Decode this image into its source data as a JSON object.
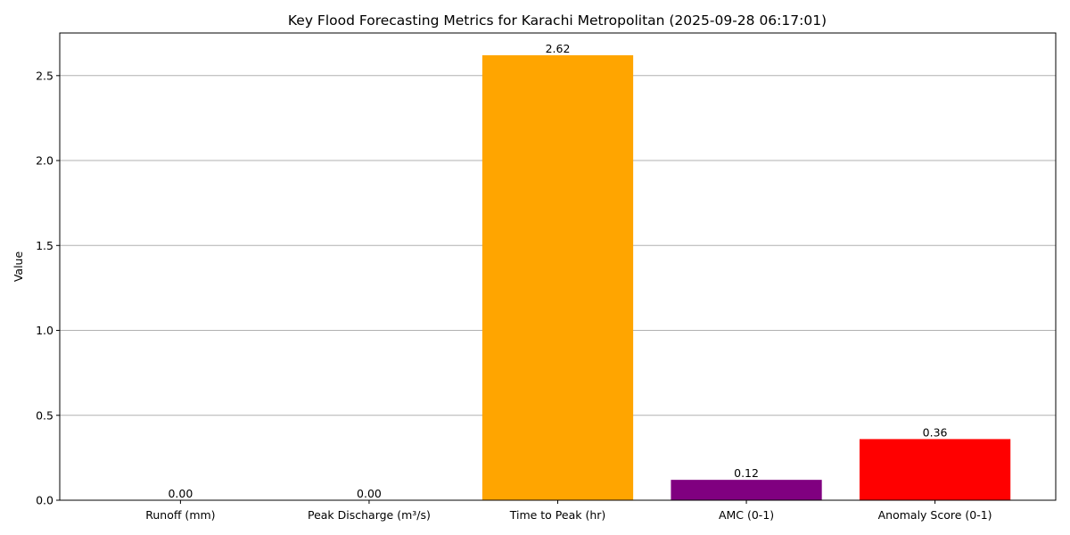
{
  "chart_data": {
    "type": "bar",
    "title": "Key Flood Forecasting Metrics for Karachi Metropolitan (2025-09-28 06:17:01)",
    "xlabel": "",
    "ylabel": "Value",
    "categories": [
      "Runoff (mm)",
      "Peak Discharge (m³/s)",
      "Time to Peak (hr)",
      "AMC (0-1)",
      "Anomaly Score (0-1)"
    ],
    "values": [
      0.0,
      0.0,
      2.62,
      0.12,
      0.36
    ],
    "value_labels": [
      "0.00",
      "0.00",
      "2.62",
      "0.12",
      "0.36"
    ],
    "colors": [
      "#1f77b4",
      "#2ca02c",
      "#ffa500",
      "#800080",
      "#ff0000"
    ],
    "ylim": [
      0,
      2.751
    ],
    "yticks": [
      0.0,
      0.5,
      1.0,
      1.5,
      2.0,
      2.5
    ],
    "ytick_labels": [
      "0.0",
      "0.5",
      "1.0",
      "1.5",
      "2.0",
      "2.5"
    ],
    "grid": "y-axis"
  }
}
